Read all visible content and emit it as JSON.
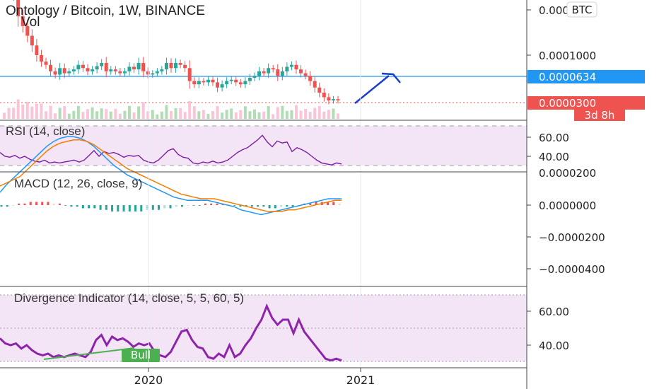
{
  "chart_data": {
    "type": "line",
    "symbol": "Ontology / Bitcoin, 1W, BINANCE",
    "volume_label": "Vol",
    "currency": "BTC",
    "price_pane": {
      "y_ticks": [
        "0.0000000",
        "0.0001000"
      ],
      "price_line_label": "0.0000634",
      "price_line_value": 6.34e-05,
      "last_price_label": "0.0000300",
      "last_price_value": 3e-05,
      "countdown": "3d 8h",
      "close": [
        0.000205,
        0.000195,
        0.00019,
        0.00016,
        0.000145,
        0.00013,
        0.000115,
        0.0001,
        9e-05,
        8.5e-05,
        7.5e-05,
        7e-05,
        8e-05,
        7.2e-05,
        7.5e-05,
        7.8e-05,
        8.5e-05,
        8e-05,
        7.5e-05,
        7.8e-05,
        8.3e-05,
        8.8e-05,
        7.5e-05,
        7.8e-05,
        7.5e-05,
        7.2e-05,
        7.5e-05,
        8.2e-05,
        7.8e-05,
        8.8e-05,
        7.5e-05,
        7e-05,
        7.2e-05,
        7.5e-05,
        7.8e-05,
        8.8e-05,
        8e-05,
        8.8e-05,
        8.5e-05,
        8e-05,
        6e-05,
        5.5e-05,
        6e-05,
        5.8e-05,
        6.2e-05,
        5.8e-05,
        5e-05,
        5.5e-05,
        6e-05,
        6.2e-05,
        5.8e-05,
        5.5e-05,
        6e-05,
        6.5e-05,
        6.8e-05,
        7.5e-05,
        7.2e-05,
        8e-05,
        7.8e-05,
        6.8e-05,
        7.5e-05,
        8.2e-05,
        8.5e-05,
        7.8e-05,
        7.2e-05,
        6.8e-05,
        6e-05,
        5e-05,
        4.2e-05,
        3.5e-05,
        3e-05,
        3.2e-05,
        3e-05
      ]
    },
    "rsi": {
      "label": "RSI (14, close)",
      "y_ticks": [
        "60.00",
        "40.00"
      ],
      "values": [
        44,
        40,
        39,
        41,
        38,
        40,
        37,
        35,
        34,
        36,
        33,
        34,
        33,
        34,
        35,
        36,
        34,
        36,
        41,
        46,
        40,
        45,
        43,
        44,
        42,
        39,
        41,
        40,
        41,
        36,
        34,
        33,
        36,
        41,
        46,
        48,
        42,
        39,
        38,
        33,
        32,
        34,
        33,
        35,
        33,
        34,
        36,
        40,
        44,
        47,
        49,
        53,
        57,
        62,
        55,
        50,
        56,
        54,
        55,
        45,
        49,
        47,
        44,
        40,
        36,
        33,
        32,
        31,
        33,
        32
      ]
    },
    "macd": {
      "label": "MACD (12, 26, close, 9)",
      "y_ticks": [
        "0.0000200",
        "0.0000000",
        "−0.0000200",
        "−0.0000400"
      ],
      "macd": [
        -8e-06,
        -1.3e-05,
        -1.7e-05,
        -2.1e-05,
        -2.5e-05,
        -2.9e-05,
        -3.3e-05,
        -3.7e-05,
        -4e-05,
        -4.2e-05,
        -4.3e-05,
        -4.3e-05,
        -4.2e-05,
        -4e-05,
        -3.7e-05,
        -3.3e-05,
        -2.9e-05,
        -2.5e-05,
        -2.2e-05,
        -1.9e-05,
        -1.7e-05,
        -1.5e-05,
        -1.3e-05,
        -1.1e-05,
        -9e-06,
        -7e-06,
        -5e-06,
        -4e-06,
        -3e-06,
        -3e-06,
        -3e-06,
        -3e-06,
        -2e-06,
        -1e-06,
        0,
        1e-06,
        3e-06,
        4e-06,
        5e-06,
        6e-06,
        5e-06,
        4e-06,
        3e-06,
        2e-06,
        1e-06,
        0,
        -1e-06,
        -2e-06,
        -3e-06,
        -4e-06,
        -4e-06,
        -4e-06
      ],
      "signal": [
        -1.2e-05,
        -1.4e-05,
        -1.6e-05,
        -1.8e-05,
        -2.2e-05,
        -2.6e-05,
        -3e-05,
        -3.4e-05,
        -3.7e-05,
        -3.9e-05,
        -4e-05,
        -4.1e-05,
        -4.1e-05,
        -4e-05,
        -3.8e-05,
        -3.5e-05,
        -3.2e-05,
        -2.9e-05,
        -2.6e-05,
        -2.3e-05,
        -2.1e-05,
        -1.9e-05,
        -1.7e-05,
        -1.5e-05,
        -1.3e-05,
        -1.1e-05,
        -9e-06,
        -7e-06,
        -6e-06,
        -5e-06,
        -4e-06,
        -4e-06,
        -4e-06,
        -3e-06,
        -2e-06,
        -1e-06,
        0,
        1e-06,
        2e-06,
        3e-06,
        4e-06,
        4e-06,
        4e-06,
        3e-06,
        3e-06,
        2e-06,
        1e-06,
        0,
        -1e-06,
        -2e-06,
        -3e-06,
        -3e-06
      ],
      "histogram": [
        1e-06,
        1e-06,
        0,
        -1e-06,
        -1e-06,
        -2e-06,
        -2e-06,
        -2e-06,
        -2e-06,
        -1e-06,
        -1e-06,
        0,
        1e-06,
        1e-06,
        2e-06,
        2e-06,
        2e-06,
        3e-06,
        3e-06,
        4e-06,
        4e-06,
        4e-06,
        4e-06,
        4e-06,
        4e-06,
        3e-06,
        3e-06,
        3e-06,
        2e-06,
        2e-06,
        1e-06,
        1e-06,
        0,
        0,
        0,
        -1e-06,
        -1e-06,
        -1e-06,
        -1e-06,
        0,
        0,
        1e-06,
        1e-06,
        1e-06,
        1e-06,
        1e-06,
        2e-06,
        2e-06,
        1e-06,
        1e-06,
        1e-06,
        0,
        -1e-06,
        -1e-06,
        -2e-06,
        -2e-06,
        -2e-06,
        -2e-06,
        -1e-06
      ]
    },
    "divergence": {
      "label": "Divergence Indicator (14, close, 5, 5, 60, 5)",
      "y_ticks": [
        "60.00",
        "40.00"
      ],
      "bull_label": "Bull",
      "values": [
        44,
        41,
        40,
        41,
        38,
        40,
        37,
        35,
        34,
        35,
        33,
        34,
        33,
        34,
        35,
        34,
        33,
        36,
        43,
        46,
        40,
        45,
        43,
        44,
        42,
        39,
        41,
        40,
        41,
        36,
        34,
        33,
        36,
        42,
        48,
        49,
        43,
        39,
        38,
        33,
        32,
        35,
        33,
        40,
        33,
        35,
        40,
        44,
        50,
        55,
        63,
        56,
        52,
        55,
        55,
        47,
        55,
        48,
        44,
        40,
        36,
        32,
        31,
        32,
        31
      ]
    },
    "x_axis": {
      "labels": [
        "2020",
        "2021"
      ]
    }
  }
}
